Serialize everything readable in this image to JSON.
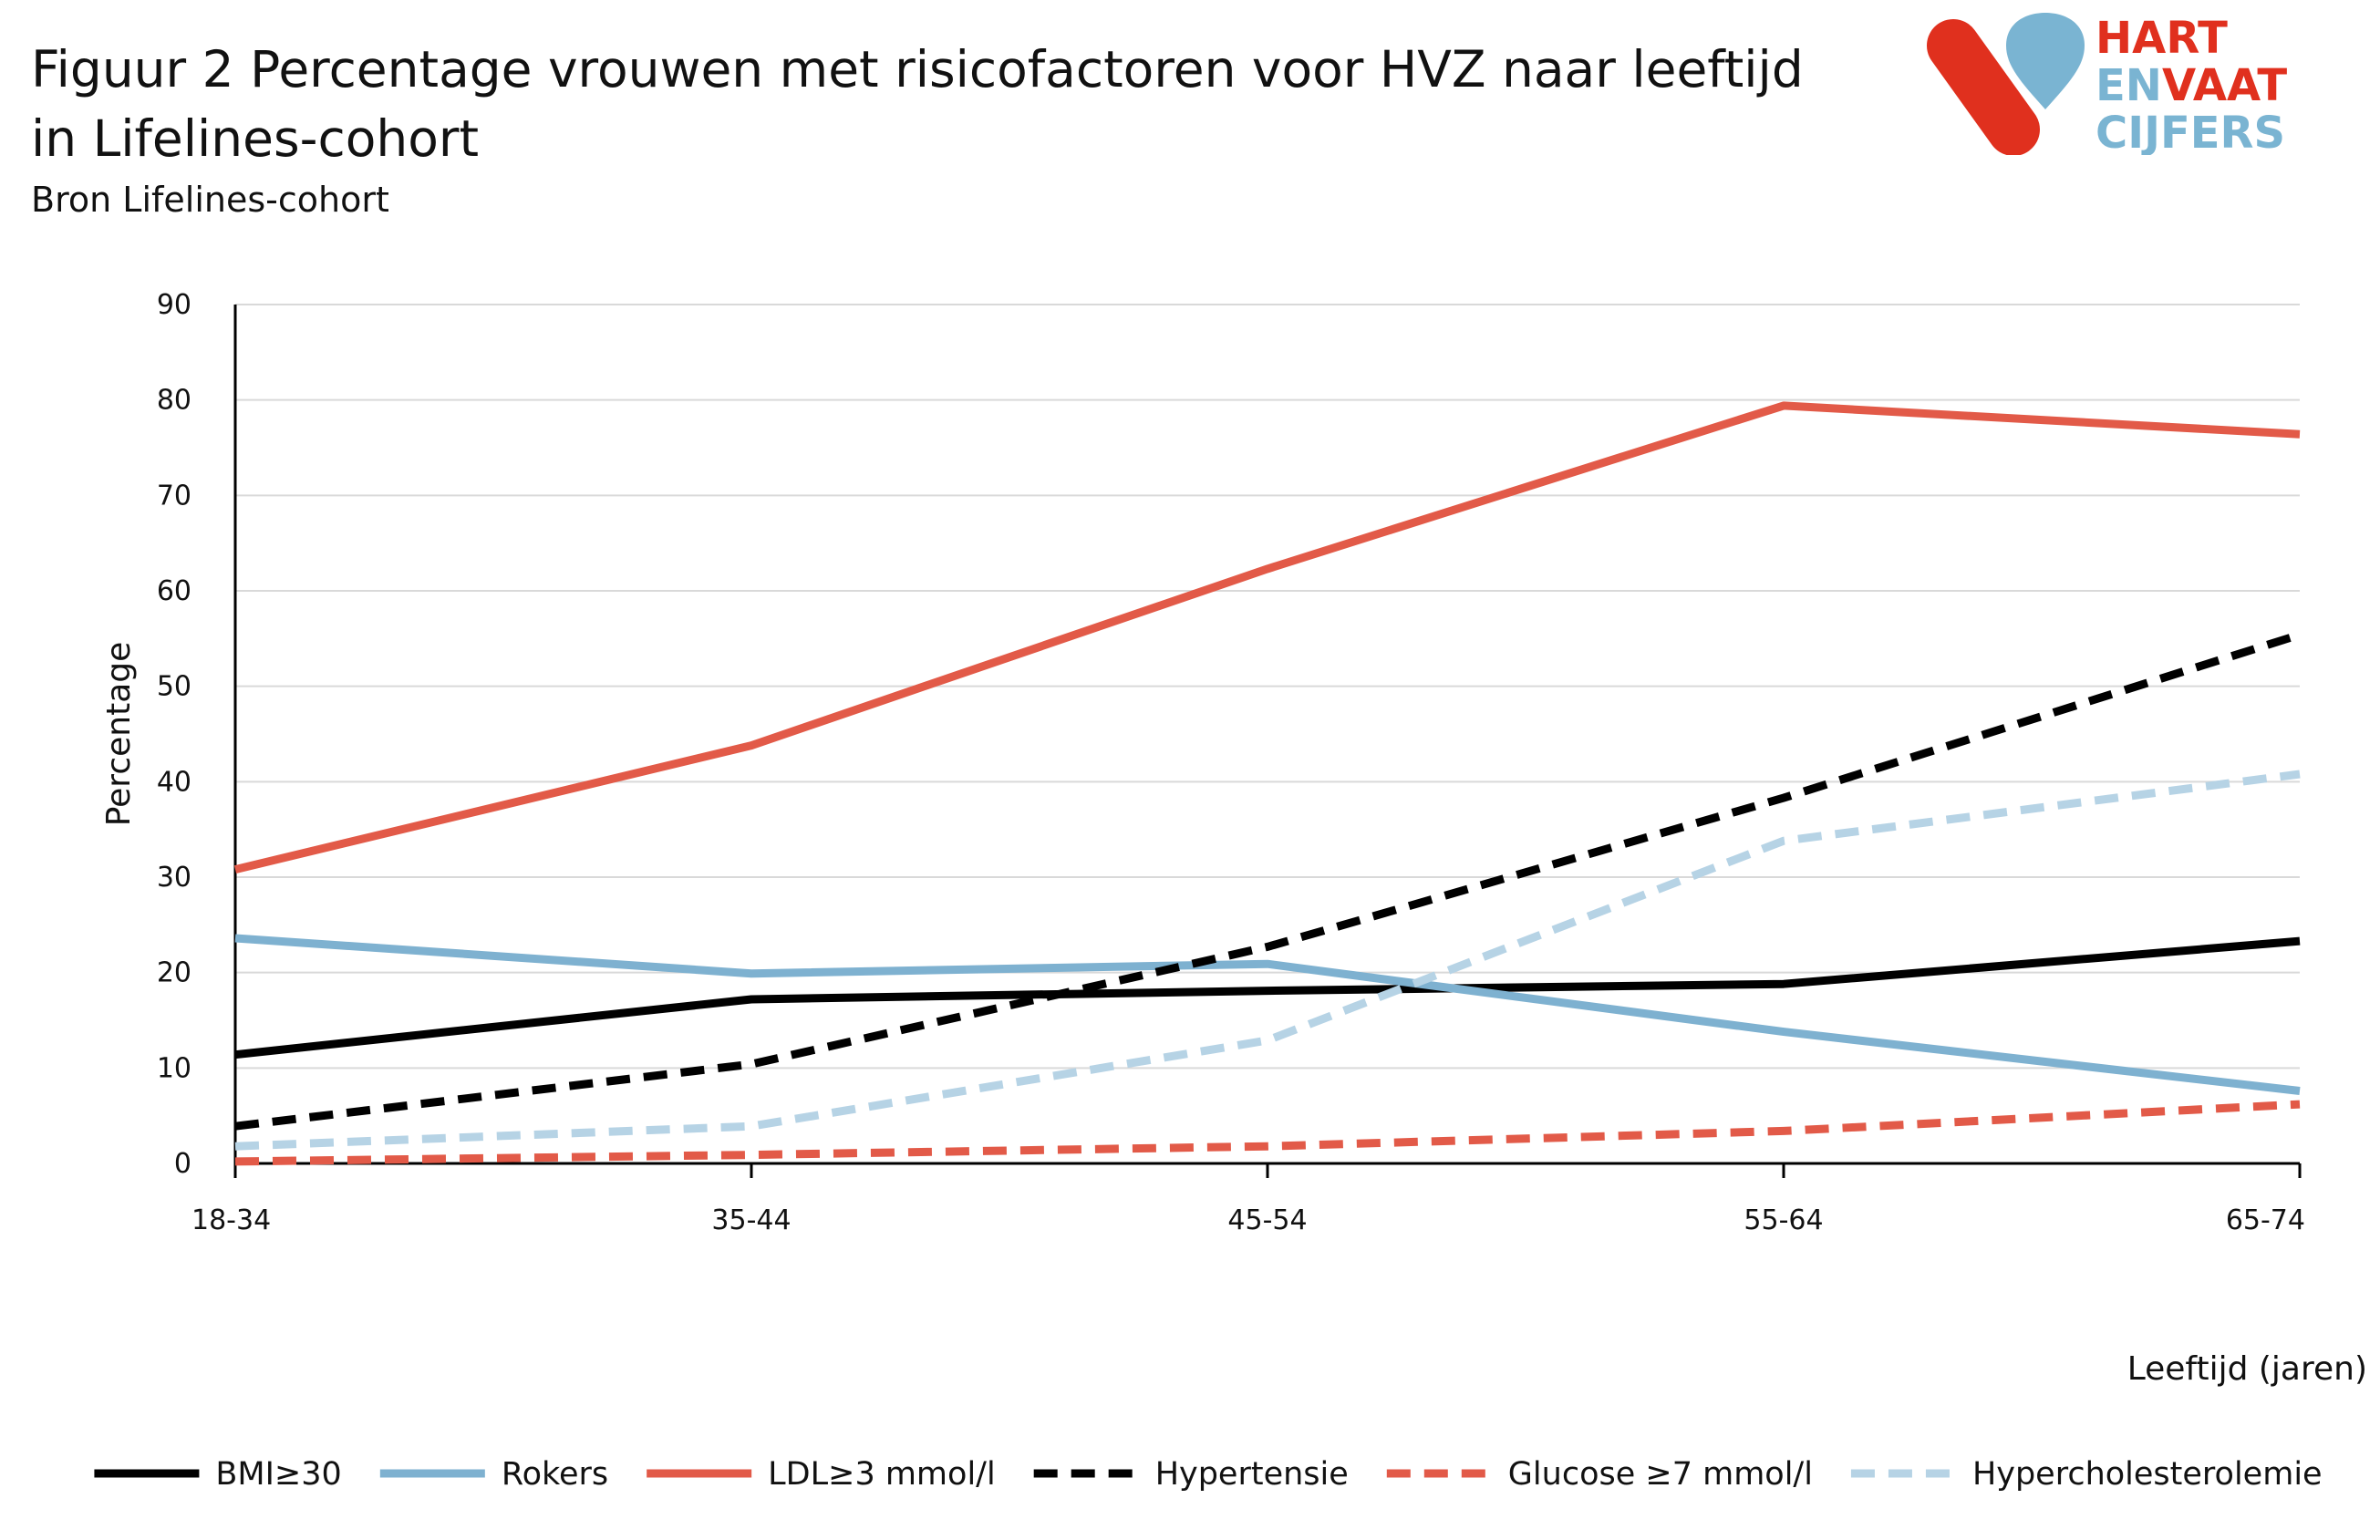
{
  "header": {
    "title": "Figuur 2 Percentage vrouwen met risicofactoren voor HVZ naar leeftijd in Lifelines-cohort",
    "subtitle": "Bron Lifelines-cohort"
  },
  "logo": {
    "line1": "HART",
    "line2a": "EN",
    "line2b": "VAAT",
    "line3": "CIJFERS",
    "red": "#e0301e",
    "blue": "#7ab4d2"
  },
  "chart_data": {
    "type": "line",
    "xlabel": "Leeftijd (jaren)",
    "ylabel": "Percentage",
    "ylim": [
      0,
      90
    ],
    "yticks": [
      0,
      10,
      20,
      30,
      40,
      50,
      60,
      70,
      80,
      90
    ],
    "grid": true,
    "legend_position": "bottom",
    "categories": [
      "18-34",
      "35-44",
      "45-54",
      "55-64",
      "65-74"
    ],
    "series": [
      {
        "name": "BMI≥30",
        "values": [
          11.4,
          17.2,
          18.1,
          18.8,
          23.3
        ],
        "color": "#000000",
        "dashed": false
      },
      {
        "name": "Rokers",
        "values": [
          23.6,
          19.9,
          20.9,
          13.8,
          7.6
        ],
        "color": "#7eb1d0",
        "dashed": false
      },
      {
        "name": "LDL≥3 mmol/l",
        "values": [
          30.8,
          43.8,
          62.3,
          79.4,
          76.4
        ],
        "color": "#e25a48",
        "dashed": false
      },
      {
        "name": "Hypertensie",
        "values": [
          3.9,
          10.4,
          22.7,
          38.3,
          55.4
        ],
        "color": "#000000",
        "dashed": true
      },
      {
        "name": "Glucose ≥7 mmol/l",
        "values": [
          0.2,
          0.9,
          1.8,
          3.4,
          6.2
        ],
        "color": "#e25a48",
        "dashed": true
      },
      {
        "name": "Hypercholesterolemie",
        "values": [
          1.8,
          3.9,
          12.9,
          33.8,
          40.8
        ],
        "color": "#b6d3e5",
        "dashed": true
      }
    ]
  }
}
